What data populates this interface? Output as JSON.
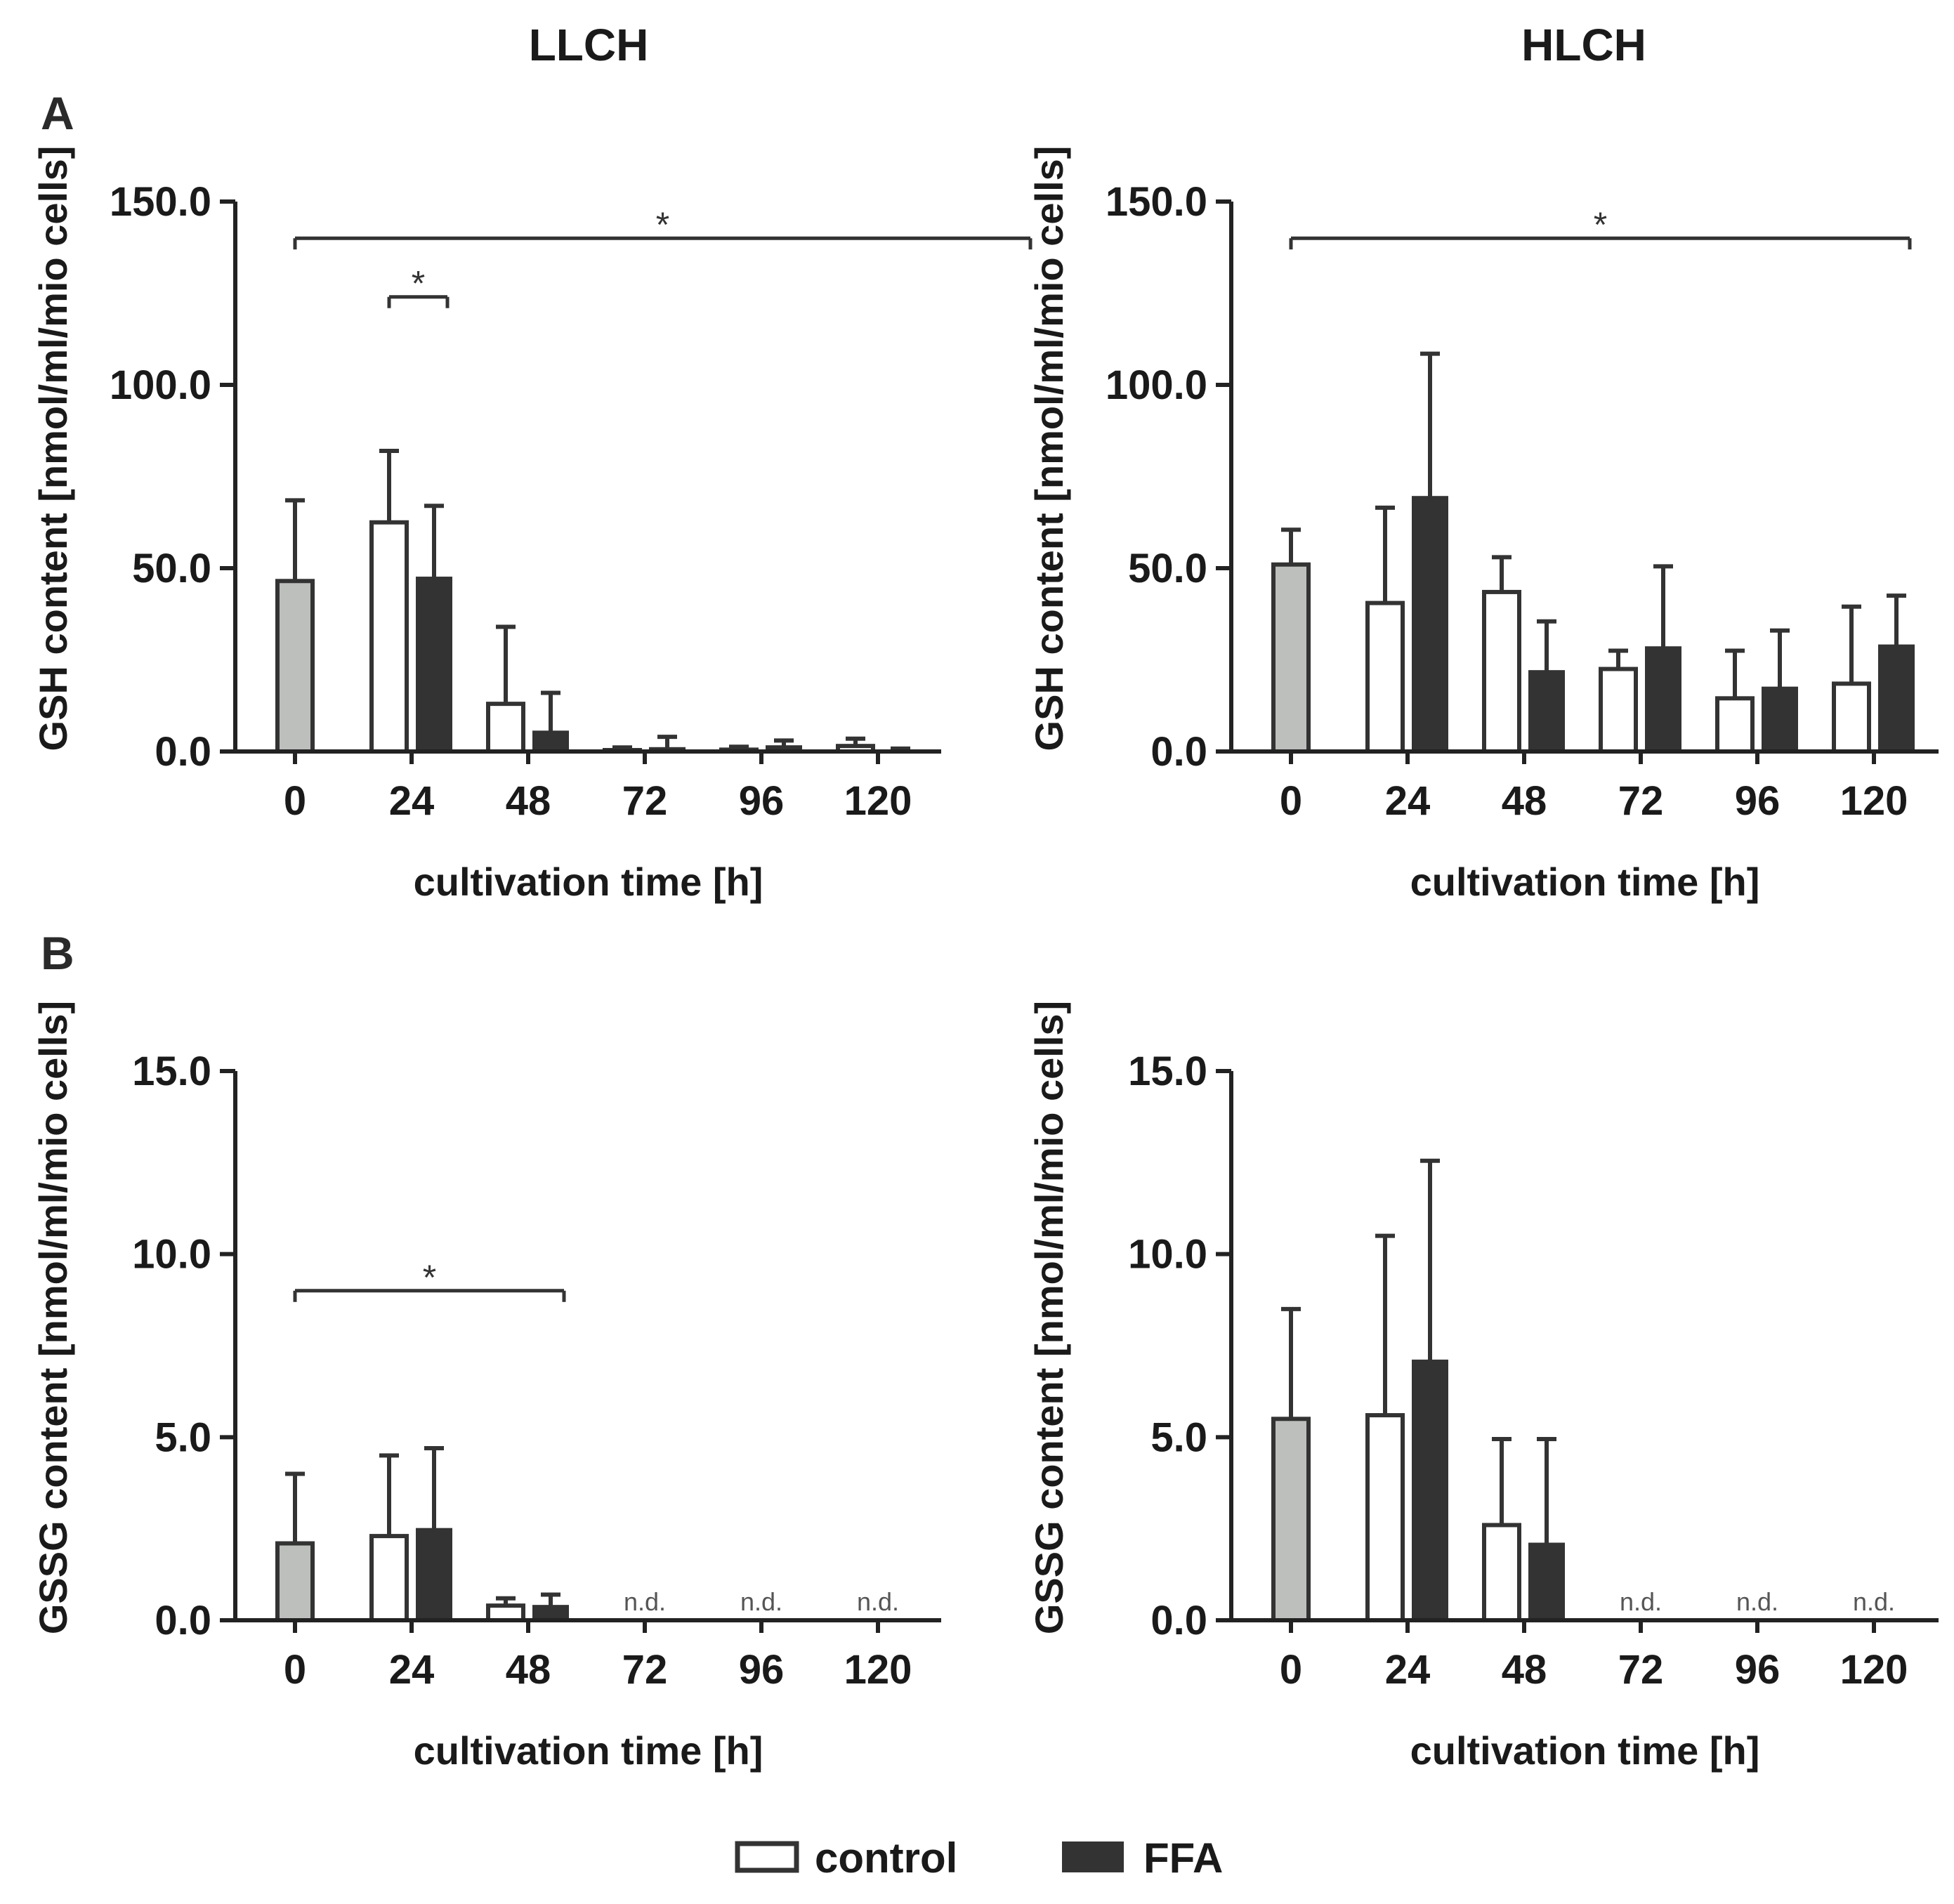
{
  "figure": {
    "column_titles": [
      "LLCH",
      "HLCH"
    ],
    "panel_letters": [
      "A",
      "B"
    ],
    "legend": {
      "control": "control",
      "ffa": "FFA"
    },
    "colors": {
      "baseline_fill": "#bcbfbb",
      "control_fill": "#ffffff",
      "ffa_fill": "#333333",
      "stroke": "#333333"
    }
  },
  "chart_data": [
    {
      "id": "A-LLCH",
      "type": "bar",
      "row": 0,
      "col": 0,
      "ylabel": "GSH content [nmol/ml/mio cells]",
      "xlabel": "cultivation time [h]",
      "ylim": [
        0,
        150
      ],
      "yticks": [
        "0.0",
        "50.0",
        "100.0",
        "150.0"
      ],
      "yticks_values": [
        0,
        50,
        100,
        150
      ],
      "categories": [
        "0",
        "24",
        "48",
        "72",
        "96",
        "120"
      ],
      "baseline": {
        "name": "0 h",
        "value": 46.5,
        "err": 22
      },
      "series": [
        {
          "name": "control",
          "values": [
            null,
            62.5,
            13,
            0.3,
            0.5,
            1.5
          ],
          "err": [
            null,
            19.5,
            21,
            0.8,
            0.8,
            2
          ]
        },
        {
          "name": "FFA",
          "values": [
            null,
            47.5,
            5.5,
            1,
            1.5,
            0.3
          ],
          "err": [
            null,
            19.5,
            10.5,
            3,
            1.5,
            0.5
          ]
        }
      ],
      "nd": [],
      "significance": [
        {
          "label": "*",
          "y": 140,
          "from": 0,
          "to": 13
        },
        {
          "label": "*",
          "y": 124,
          "from": 2,
          "to": 3
        }
      ]
    },
    {
      "id": "A-HLCH",
      "type": "bar",
      "row": 0,
      "col": 1,
      "ylabel": "GSH content [nmol/ml/mio cells]",
      "xlabel": "cultivation time [h]",
      "ylim": [
        0,
        150
      ],
      "yticks": [
        "0.0",
        "50.0",
        "100.0",
        "150.0"
      ],
      "yticks_values": [
        0,
        50,
        100,
        150
      ],
      "categories": [
        "0",
        "24",
        "48",
        "72",
        "96",
        "120"
      ],
      "baseline": {
        "name": "0 h",
        "value": 51,
        "err": 9.5
      },
      "series": [
        {
          "name": "control",
          "values": [
            null,
            40.5,
            43.5,
            22.5,
            14.5,
            18.5
          ],
          "err": [
            null,
            26,
            9.5,
            5,
            13,
            21
          ]
        },
        {
          "name": "FFA",
          "values": [
            null,
            69.5,
            22,
            28.5,
            17.5,
            29
          ],
          "err": [
            null,
            39,
            13.5,
            22,
            15.5,
            13.5
          ]
        }
      ],
      "nd": [],
      "significance": [
        {
          "label": "*",
          "y": 140,
          "from": 0,
          "to": 11
        }
      ]
    },
    {
      "id": "B-LLCH",
      "type": "bar",
      "row": 1,
      "col": 0,
      "ylabel": "GSSG content [nmol/ml/mio cells]",
      "xlabel": "cultivation time [h]",
      "ylim": [
        0,
        15
      ],
      "yticks": [
        "0.0",
        "5.0",
        "10.0",
        "15.0"
      ],
      "yticks_values": [
        0,
        5,
        10,
        15
      ],
      "categories": [
        "0",
        "24",
        "48",
        "72",
        "96",
        "120"
      ],
      "baseline": {
        "name": "0 h",
        "value": 2.1,
        "err": 1.9
      },
      "series": [
        {
          "name": "control",
          "values": [
            null,
            2.3,
            0.4,
            null,
            null,
            null
          ],
          "err": [
            null,
            2.2,
            0.2,
            null,
            null,
            null
          ]
        },
        {
          "name": "FFA",
          "values": [
            null,
            2.5,
            0.4,
            null,
            null,
            null
          ],
          "err": [
            null,
            2.2,
            0.3,
            null,
            null,
            null
          ]
        }
      ],
      "nd": [
        {
          "index": 3,
          "label": "n.d."
        },
        {
          "index": 4,
          "label": "n.d."
        },
        {
          "index": 5,
          "label": "n.d."
        }
      ],
      "significance": [
        {
          "label": "*",
          "y": 9,
          "from": 0,
          "to": 5
        }
      ]
    },
    {
      "id": "B-HLCH",
      "type": "bar",
      "row": 1,
      "col": 1,
      "ylabel": "GSSG content [nmol/ml/mio cells]",
      "xlabel": "cultivation time [h]",
      "ylim": [
        0,
        15
      ],
      "yticks": [
        "0.0",
        "5.0",
        "10.0",
        "15.0"
      ],
      "yticks_values": [
        0,
        5,
        10,
        15
      ],
      "categories": [
        "0",
        "24",
        "48",
        "72",
        "96",
        "120"
      ],
      "baseline": {
        "name": "0 h",
        "value": 5.5,
        "err": 3
      },
      "series": [
        {
          "name": "control",
          "values": [
            null,
            5.6,
            2.6,
            null,
            null,
            null
          ],
          "err": [
            null,
            4.9,
            2.35,
            null,
            null,
            null
          ]
        },
        {
          "name": "FFA",
          "values": [
            null,
            7.1,
            2.1,
            null,
            null,
            null
          ],
          "err": [
            null,
            5.45,
            2.85,
            null,
            null,
            null
          ]
        }
      ],
      "nd": [
        {
          "index": 3,
          "label": "n.d."
        },
        {
          "index": 4,
          "label": "n.d."
        },
        {
          "index": 5,
          "label": "n.d."
        }
      ],
      "significance": []
    }
  ]
}
